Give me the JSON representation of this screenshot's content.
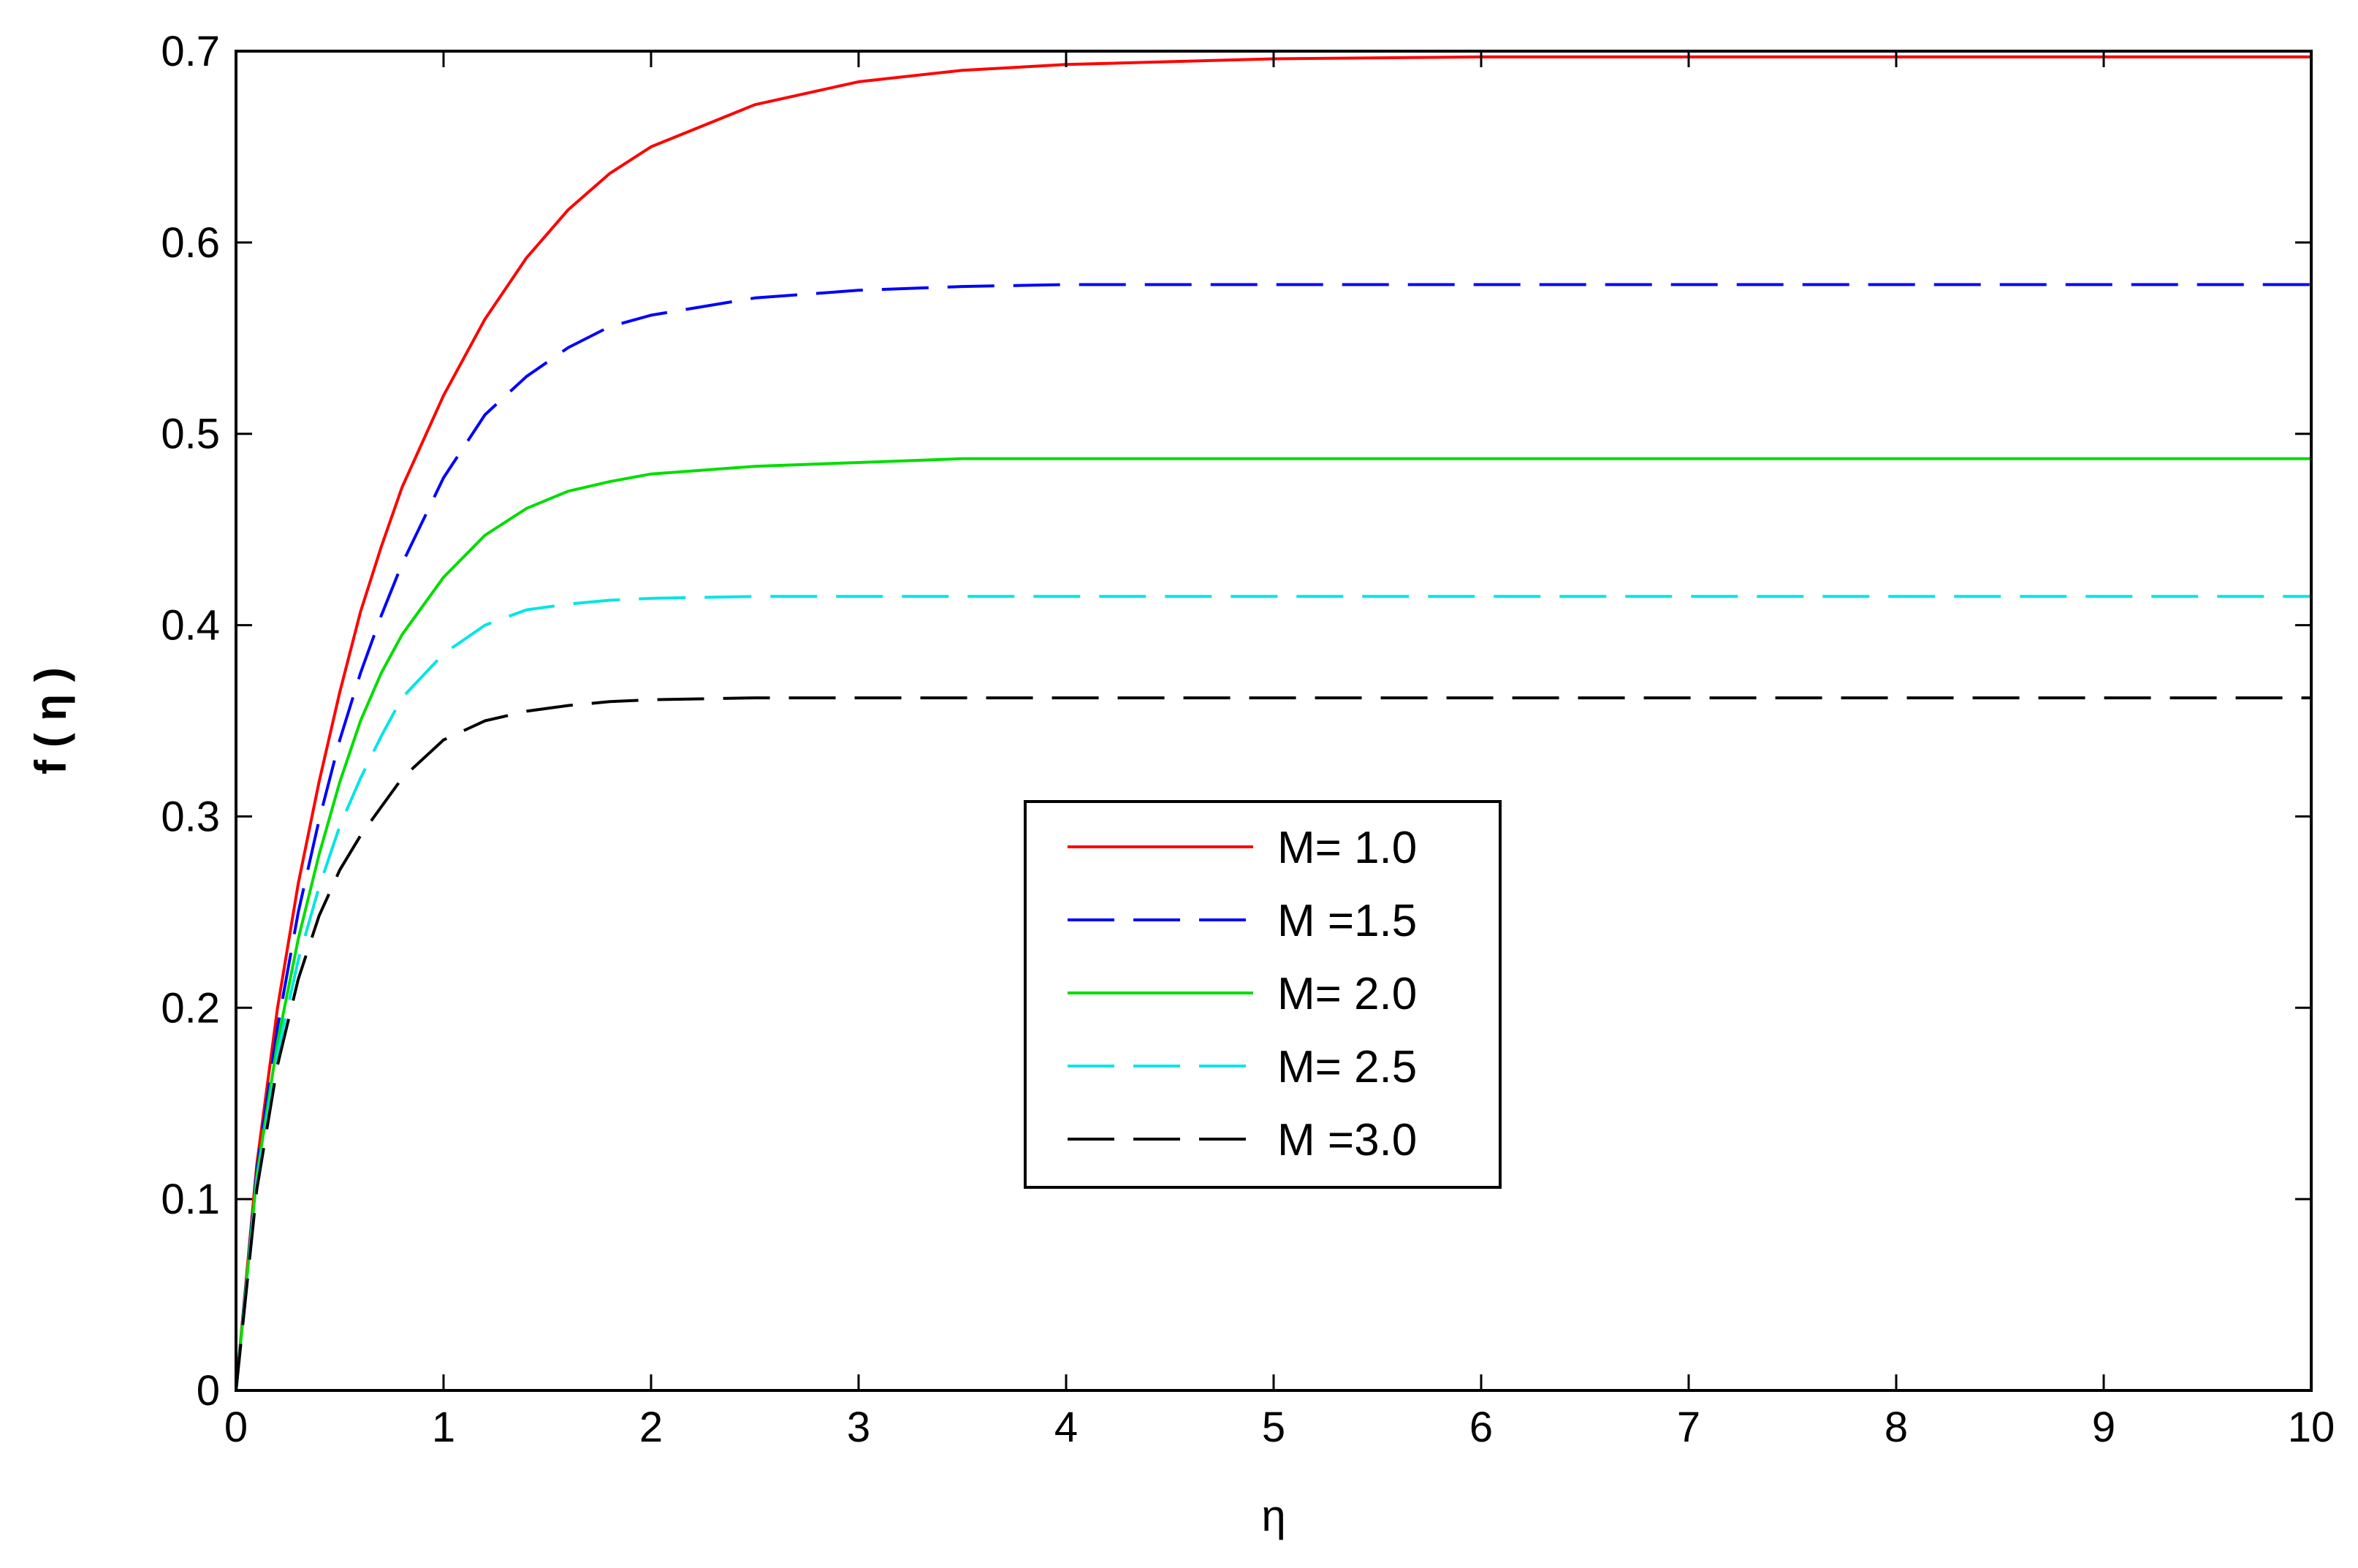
{
  "chart_data": {
    "type": "line",
    "title": "",
    "xlabel": "η",
    "ylabel": "f ( η )",
    "xlim": [
      0,
      10
    ],
    "ylim": [
      0,
      0.7
    ],
    "x_ticks": [
      "0",
      "1",
      "2",
      "3",
      "4",
      "5",
      "6",
      "7",
      "8",
      "9",
      "10"
    ],
    "y_ticks": [
      "0",
      "0.1",
      "0.2",
      "0.3",
      "0.4",
      "0.5",
      "0.6",
      "0.7"
    ],
    "grid": false,
    "legend_position": "center",
    "x": [
      0,
      0.1,
      0.2,
      0.3,
      0.4,
      0.5,
      0.6,
      0.7,
      0.8,
      1.0,
      1.2,
      1.4,
      1.6,
      1.8,
      2.0,
      2.5,
      3.0,
      3.5,
      4.0,
      5.0,
      6.0,
      7.0,
      8.0,
      9.0,
      10.0
    ],
    "series": [
      {
        "name": "M= 1.0",
        "color": "#ff0000",
        "dash": "solid",
        "values": [
          0,
          0.118,
          0.2,
          0.265,
          0.318,
          0.365,
          0.407,
          0.441,
          0.472,
          0.52,
          0.56,
          0.592,
          0.617,
          0.636,
          0.65,
          0.672,
          0.684,
          0.69,
          0.693,
          0.696,
          0.697,
          0.697,
          0.697,
          0.697,
          0.697
        ]
      },
      {
        "name": "M =1.5",
        "color": "#0000ff",
        "dash": "dashed",
        "values": [
          0,
          0.115,
          0.19,
          0.25,
          0.298,
          0.34,
          0.375,
          0.405,
          0.432,
          0.477,
          0.51,
          0.53,
          0.545,
          0.556,
          0.562,
          0.571,
          0.575,
          0.577,
          0.578,
          0.578,
          0.578,
          0.578,
          0.578,
          0.578,
          0.578
        ]
      },
      {
        "name": "M= 2.0",
        "color": "#00dd00",
        "dash": "solid",
        "values": [
          0,
          0.112,
          0.182,
          0.236,
          0.28,
          0.318,
          0.35,
          0.375,
          0.395,
          0.425,
          0.447,
          0.461,
          0.47,
          0.475,
          0.479,
          0.483,
          0.485,
          0.487,
          0.487,
          0.487,
          0.487,
          0.487,
          0.487,
          0.487,
          0.487
        ]
      },
      {
        "name": "M= 2.5",
        "color": "#00e5e5",
        "dash": "dashed",
        "values": [
          0,
          0.108,
          0.176,
          0.225,
          0.263,
          0.295,
          0.32,
          0.342,
          0.362,
          0.385,
          0.4,
          0.408,
          0.411,
          0.413,
          0.414,
          0.415,
          0.415,
          0.415,
          0.415,
          0.415,
          0.415,
          0.415,
          0.415,
          0.415,
          0.415
        ]
      },
      {
        "name": "M =3.0",
        "color": "#000000",
        "dash": "dashed",
        "values": [
          0,
          0.105,
          0.17,
          0.215,
          0.248,
          0.272,
          0.29,
          0.305,
          0.32,
          0.34,
          0.35,
          0.355,
          0.358,
          0.36,
          0.361,
          0.362,
          0.362,
          0.362,
          0.362,
          0.362,
          0.362,
          0.362,
          0.362,
          0.362,
          0.362
        ]
      }
    ]
  }
}
